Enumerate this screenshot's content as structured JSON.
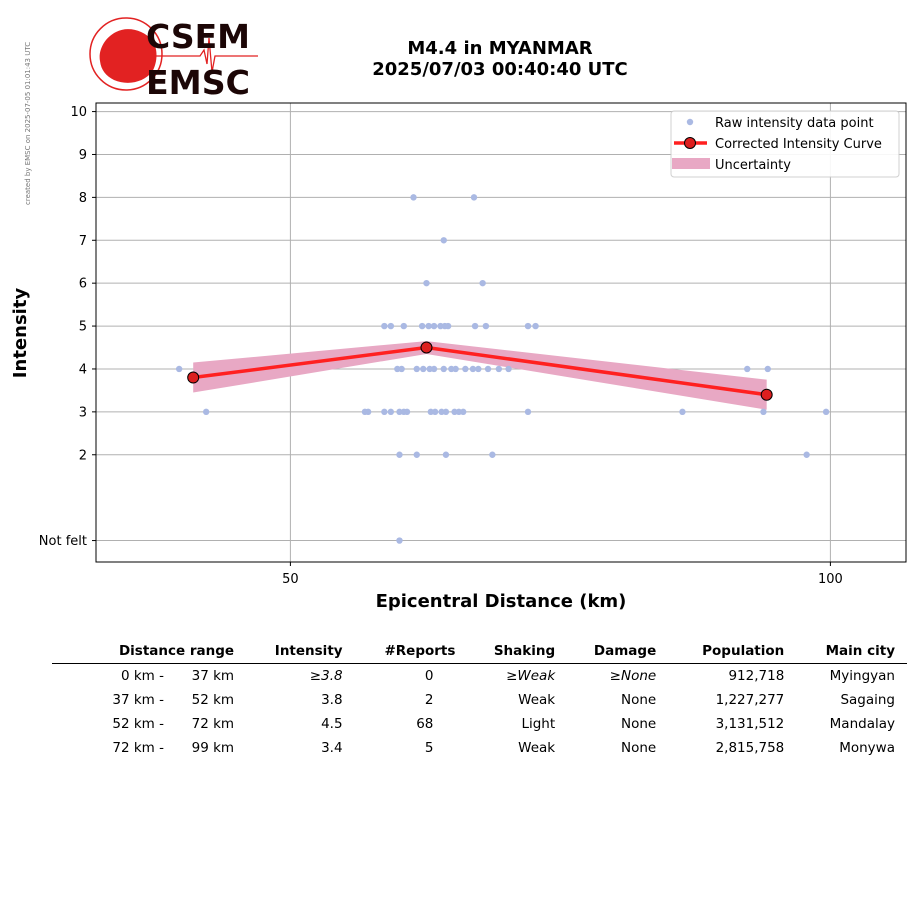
{
  "header": {
    "credit": "created by EMSC on 2025-07-05 01:01:43 UTC",
    "logo_top": "CSEM",
    "logo_bottom": "EMSC",
    "title_line1": "M4.4 in MYANMAR",
    "title_line2": "2025/07/03 00:40:40 UTC"
  },
  "colors": {
    "raw": "#aab9e3",
    "curve": "#ff2020",
    "marker": "#dd1f1f",
    "uncertainty": "#e8a8c4",
    "logo_red": "#e22222",
    "logo_dark": "#1c0606"
  },
  "chart_data": {
    "type": "scatter",
    "xlabel": "Epicentral Distance (km)",
    "ylabel": "Intensity",
    "xlim": [
      32,
      107
    ],
    "ylim": [
      -0.5,
      10.2
    ],
    "x_ticks": [
      50,
      100
    ],
    "y_ticks": [
      {
        "value": 0,
        "label": "Not felt"
      },
      {
        "value": 2,
        "label": "2"
      },
      {
        "value": 3,
        "label": "3"
      },
      {
        "value": 4,
        "label": "4"
      },
      {
        "value": 5,
        "label": "5"
      },
      {
        "value": 6,
        "label": "6"
      },
      {
        "value": 7,
        "label": "7"
      },
      {
        "value": 8,
        "label": "8"
      },
      {
        "value": 9,
        "label": "9"
      },
      {
        "value": 10,
        "label": "10"
      }
    ],
    "grid": true,
    "legend": {
      "position": "top-right",
      "entries": [
        "Raw intensity data point",
        "Corrected Intensity Curve",
        "Uncertainty"
      ]
    },
    "raw_points": [
      {
        "x": 61.4,
        "y": 8
      },
      {
        "x": 67.0,
        "y": 8
      },
      {
        "x": 64.2,
        "y": 7
      },
      {
        "x": 62.6,
        "y": 6
      },
      {
        "x": 67.8,
        "y": 6
      },
      {
        "x": 58.7,
        "y": 5
      },
      {
        "x": 59.3,
        "y": 5
      },
      {
        "x": 60.5,
        "y": 5
      },
      {
        "x": 62.2,
        "y": 5
      },
      {
        "x": 62.8,
        "y": 5
      },
      {
        "x": 63.3,
        "y": 5
      },
      {
        "x": 63.9,
        "y": 5
      },
      {
        "x": 64.3,
        "y": 5
      },
      {
        "x": 64.6,
        "y": 5
      },
      {
        "x": 67.1,
        "y": 5
      },
      {
        "x": 68.1,
        "y": 5
      },
      {
        "x": 72.0,
        "y": 5
      },
      {
        "x": 72.7,
        "y": 5
      },
      {
        "x": 39.7,
        "y": 4
      },
      {
        "x": 59.9,
        "y": 4
      },
      {
        "x": 60.3,
        "y": 4
      },
      {
        "x": 61.7,
        "y": 4
      },
      {
        "x": 62.3,
        "y": 4
      },
      {
        "x": 62.9,
        "y": 4
      },
      {
        "x": 63.3,
        "y": 4
      },
      {
        "x": 64.2,
        "y": 4
      },
      {
        "x": 64.9,
        "y": 4
      },
      {
        "x": 65.3,
        "y": 4
      },
      {
        "x": 66.2,
        "y": 4
      },
      {
        "x": 66.9,
        "y": 4
      },
      {
        "x": 67.4,
        "y": 4
      },
      {
        "x": 68.3,
        "y": 4
      },
      {
        "x": 69.3,
        "y": 4
      },
      {
        "x": 70.2,
        "y": 4
      },
      {
        "x": 92.3,
        "y": 4
      },
      {
        "x": 94.2,
        "y": 4
      },
      {
        "x": 42.2,
        "y": 3
      },
      {
        "x": 56.9,
        "y": 3
      },
      {
        "x": 57.2,
        "y": 3
      },
      {
        "x": 58.7,
        "y": 3
      },
      {
        "x": 59.3,
        "y": 3
      },
      {
        "x": 60.1,
        "y": 3
      },
      {
        "x": 60.5,
        "y": 3
      },
      {
        "x": 60.8,
        "y": 3
      },
      {
        "x": 63.0,
        "y": 3
      },
      {
        "x": 63.4,
        "y": 3
      },
      {
        "x": 64.0,
        "y": 3
      },
      {
        "x": 64.4,
        "y": 3
      },
      {
        "x": 65.2,
        "y": 3
      },
      {
        "x": 65.6,
        "y": 3
      },
      {
        "x": 66.0,
        "y": 3
      },
      {
        "x": 72.0,
        "y": 3
      },
      {
        "x": 86.3,
        "y": 3
      },
      {
        "x": 93.8,
        "y": 3
      },
      {
        "x": 99.6,
        "y": 3
      },
      {
        "x": 60.1,
        "y": 2
      },
      {
        "x": 61.7,
        "y": 2
      },
      {
        "x": 64.4,
        "y": 2
      },
      {
        "x": 68.7,
        "y": 2
      },
      {
        "x": 97.8,
        "y": 2
      },
      {
        "x": 60.1,
        "y": 0
      }
    ],
    "curve": [
      {
        "x": 41.0,
        "y": 3.8
      },
      {
        "x": 62.6,
        "y": 4.5
      },
      {
        "x": 94.1,
        "y": 3.4
      }
    ],
    "uncertainty": [
      {
        "x": 41.0,
        "low": 3.45,
        "high": 4.15
      },
      {
        "x": 62.6,
        "low": 4.35,
        "high": 4.65
      },
      {
        "x": 94.1,
        "low": 3.05,
        "high": 3.75
      }
    ]
  },
  "table": {
    "headers": [
      "Distance range",
      "Intensity",
      "#Reports",
      "Shaking",
      "Damage",
      "Population",
      "Main city"
    ],
    "rows": [
      {
        "dist_from": "0 km -",
        "dist_to": "37 km",
        "intensity": "≥3.8",
        "reports": "0",
        "shaking": "≥Weak",
        "damage": "≥None",
        "population": "912,718",
        "city": "Myingyan"
      },
      {
        "dist_from": "37 km -",
        "dist_to": "52 km",
        "intensity": "3.8",
        "reports": "2",
        "shaking": "Weak",
        "damage": "None",
        "population": "1,227,277",
        "city": "Sagaing"
      },
      {
        "dist_from": "52 km -",
        "dist_to": "72 km",
        "intensity": "4.5",
        "reports": "68",
        "shaking": "Light",
        "damage": "None",
        "population": "3,131,512",
        "city": "Mandalay"
      },
      {
        "dist_from": "72 km -",
        "dist_to": "99 km",
        "intensity": "3.4",
        "reports": "5",
        "shaking": "Weak",
        "damage": "None",
        "population": "2,815,758",
        "city": "Monywa"
      }
    ]
  }
}
